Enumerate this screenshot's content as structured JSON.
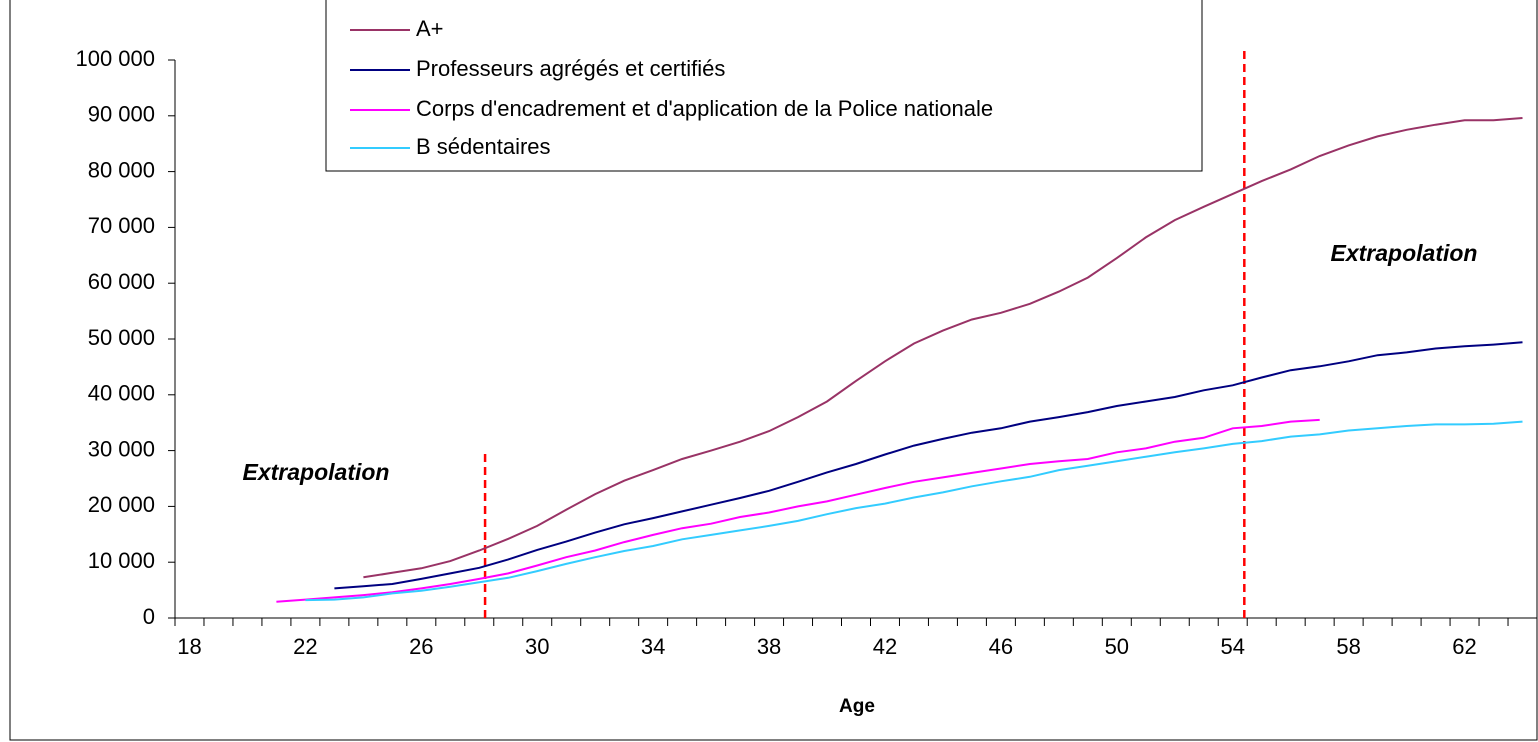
{
  "chart_data": {
    "type": "line",
    "x_label": "Age",
    "categories": [
      "18",
      null,
      null,
      null,
      "22",
      null,
      null,
      null,
      "26",
      null,
      null,
      null,
      "30",
      null,
      null,
      null,
      "34",
      null,
      null,
      null,
      "38",
      null,
      null,
      null,
      "42",
      null,
      null,
      null,
      "46",
      null,
      null,
      null,
      "50",
      null,
      null,
      null,
      "54",
      null,
      null,
      null,
      "58",
      null,
      null,
      null,
      "62",
      null,
      null
    ],
    "series": [
      {
        "name": "A+",
        "color": "#993366",
        "values": [
          null,
          null,
          null,
          null,
          null,
          null,
          7300,
          8100,
          8900,
          10200,
          12100,
          14200,
          16500,
          19400,
          22200,
          24600,
          26500,
          28500,
          30000,
          31600,
          33500,
          36000,
          38800,
          42500,
          46000,
          49200,
          51500,
          53500,
          54700,
          56300,
          58500,
          61000,
          64500,
          68200,
          71300,
          73700,
          76000,
          78300,
          80400,
          82800,
          84700,
          86300,
          87500,
          88400,
          89200,
          89200,
          89600
        ]
      },
      {
        "name": "Professeurs agrégés et certifiés",
        "color": "#000080",
        "values": [
          null,
          null,
          null,
          null,
          null,
          5300,
          5700,
          6100,
          7000,
          8000,
          9000,
          10500,
          12200,
          13700,
          15300,
          16800,
          17900,
          19100,
          20300,
          21500,
          22800,
          24400,
          26100,
          27600,
          29300,
          30900,
          32100,
          33200,
          34000,
          35200,
          36000,
          36900,
          38000,
          38800,
          39600,
          40800,
          41700,
          43100,
          44400,
          45100,
          46000,
          47100,
          47600,
          48300,
          48700,
          49000,
          49400
        ]
      },
      {
        "name": "Corps d'encadrement et d'application de la Police nationale",
        "color": "#ff00ff",
        "values": [
          null,
          null,
          null,
          2900,
          3300,
          3700,
          4100,
          4600,
          5300,
          6100,
          7000,
          8000,
          9400,
          10900,
          12100,
          13600,
          14900,
          16100,
          16900,
          18100,
          18900,
          20000,
          20900,
          22100,
          23300,
          24400,
          25200,
          26000,
          26800,
          27600,
          28100,
          28500,
          29700,
          30400,
          31600,
          32300,
          34000,
          34400,
          35200,
          35500,
          null,
          null,
          null,
          null,
          null,
          null,
          null
        ]
      },
      {
        "name": "B sédentaires",
        "color": "#33ccff",
        "values": [
          null,
          null,
          null,
          null,
          3200,
          3300,
          3700,
          4400,
          4900,
          5600,
          6400,
          7200,
          8400,
          9700,
          10900,
          12000,
          12900,
          14100,
          14900,
          15700,
          16500,
          17400,
          18600,
          19700,
          20500,
          21600,
          22500,
          23600,
          24500,
          25300,
          26500,
          27300,
          28100,
          28900,
          29700,
          30400,
          31200,
          31700,
          32500,
          32900,
          33600,
          34000,
          34400,
          34700,
          34700,
          34800,
          35200
        ]
      }
    ],
    "ylim": [
      0,
      100000
    ],
    "yticks": [
      0,
      {
        "value": 10000,
        "label": "10 000"
      },
      {
        "value": 20000,
        "label": "20 000"
      },
      {
        "value": 30000,
        "label": "30 000"
      },
      {
        "value": 40000,
        "label": "40 000"
      },
      {
        "value": 50000,
        "label": "50 000"
      },
      {
        "value": 60000,
        "label": "60 000"
      },
      {
        "value": 70000,
        "label": "70 000"
      },
      {
        "value": 80000,
        "label": "80 000"
      },
      {
        "value": 90000,
        "label": "90 000"
      },
      {
        "value": 100000,
        "label": "100 000"
      }
    ],
    "grid": false,
    "reference_lines": [
      {
        "x": 10.2,
        "ymax": 29500,
        "color": "#ff0000"
      },
      {
        "x": 36.4,
        "ymax": 102000,
        "color": "#ff0000"
      }
    ],
    "annotations": [
      "Extrapolation",
      "Extrapolation"
    ]
  }
}
